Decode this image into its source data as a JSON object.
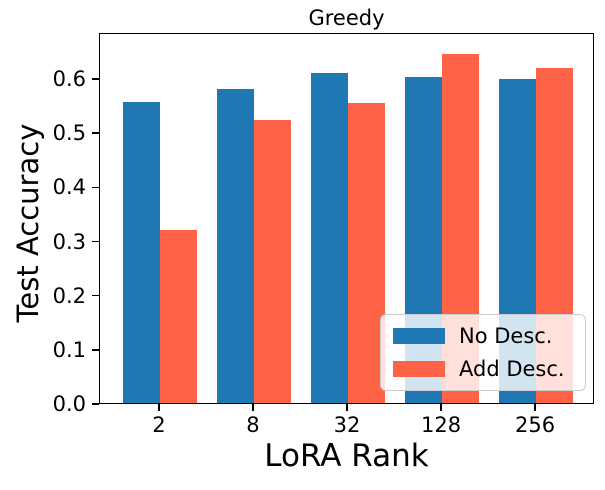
{
  "chart_data": {
    "type": "bar",
    "title": "Greedy",
    "xlabel": "LoRA Rank",
    "ylabel": "Test Accuracy",
    "categories": [
      "2",
      "8",
      "32",
      "128",
      "256"
    ],
    "series": [
      {
        "name": "No Desc.",
        "color": "#1f77b4",
        "values": [
          0.555,
          0.58,
          0.609,
          0.601,
          0.598
        ]
      },
      {
        "name": "Add Desc.",
        "color": "#ff6347",
        "values": [
          0.32,
          0.523,
          0.553,
          0.644,
          0.618
        ]
      }
    ],
    "ylim": [
      0,
      0.685
    ],
    "yticks": [
      "0.0",
      "0.1",
      "0.2",
      "0.3",
      "0.4",
      "0.5",
      "0.6"
    ],
    "grid": false,
    "legend_position": "lower right"
  }
}
